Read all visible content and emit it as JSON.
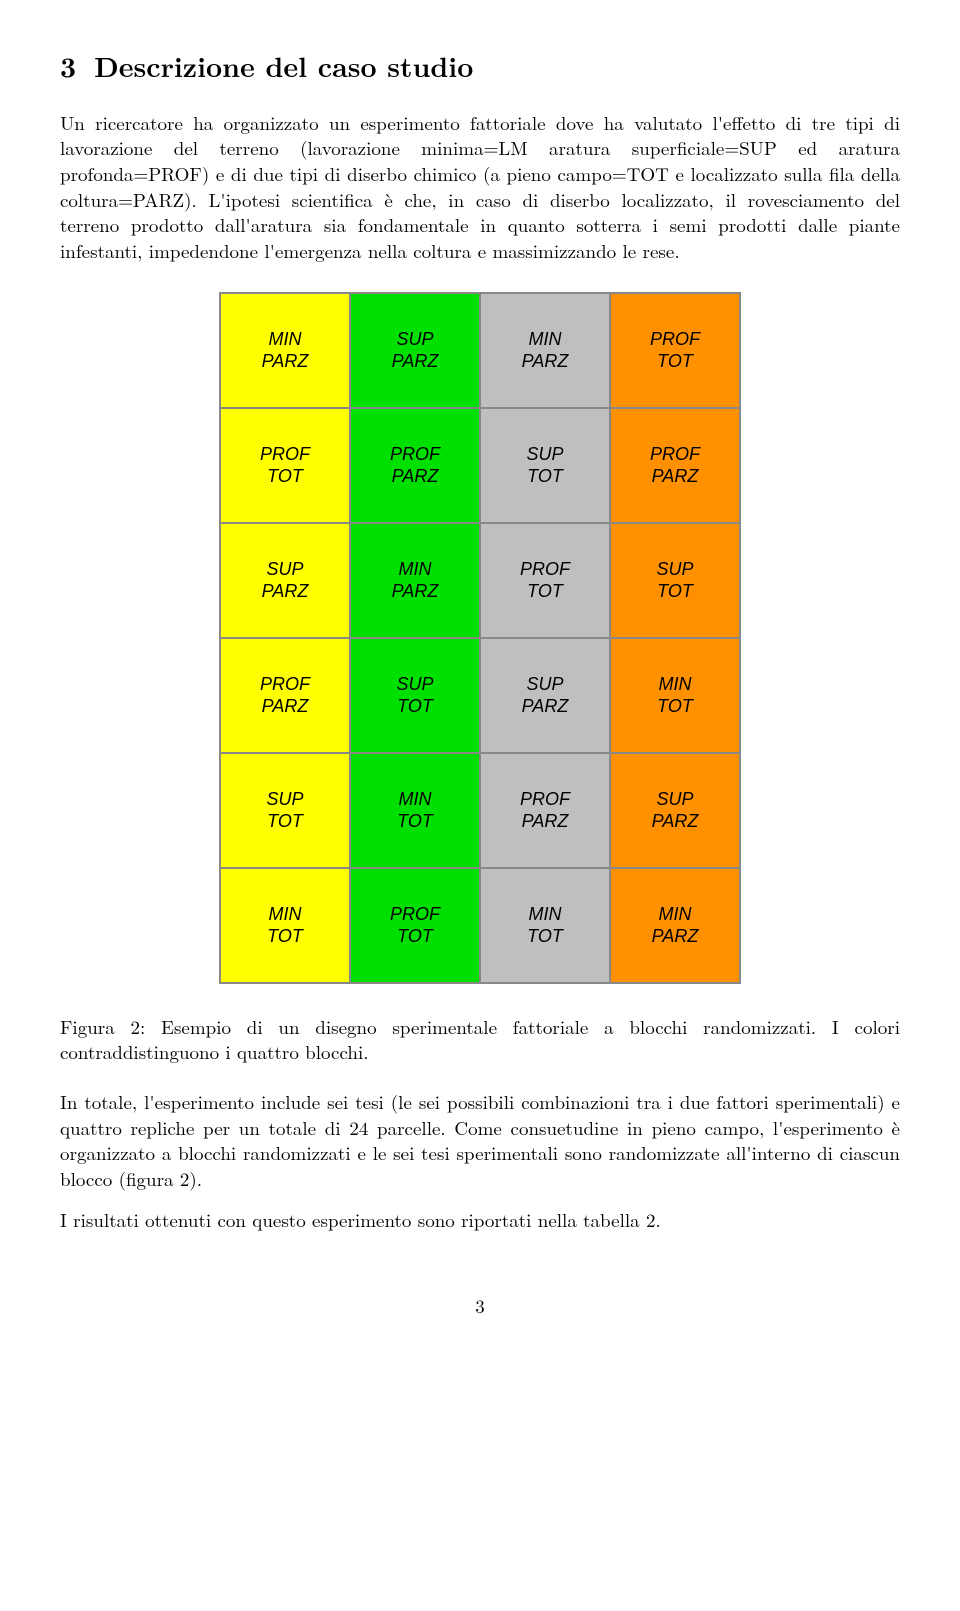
{
  "section": {
    "number": "3",
    "title": "Descrizione del caso studio"
  },
  "para1": "Un ricercatore ha organizzato un esperimento fattoriale dove ha valutato l'effetto di tre tipi di lavorazione del terreno (lavorazione minima=LM aratura superficiale=SUP ed aratura profonda=PROF) e di due tipi di diserbo chimico (a pieno campo=TOT e localizzato sulla fila della coltura=PARZ). L'ipotesi scientifica è che, in caso di diserbo localizzato, il rovesciamento del terreno prodotto dall'aratura sia fondamentale in quanto sotterra i semi prodotti dalle piante infestanti, impedendone l'emergenza nella coltura e massimizzando le rese.",
  "figure": {
    "colors": {
      "yellow": "#ffff00",
      "green": "#00e000",
      "grey": "#bfbfbf",
      "orange": "#ff9000"
    },
    "grid": [
      [
        {
          "l1": "MIN",
          "l2": "PARZ",
          "c": "yellow"
        },
        {
          "l1": "SUP",
          "l2": "PARZ",
          "c": "green"
        },
        {
          "l1": "MIN",
          "l2": "PARZ",
          "c": "grey"
        },
        {
          "l1": "PROF",
          "l2": "TOT",
          "c": "orange"
        }
      ],
      [
        {
          "l1": "PROF",
          "l2": "TOT",
          "c": "yellow"
        },
        {
          "l1": "PROF",
          "l2": "PARZ",
          "c": "green"
        },
        {
          "l1": "SUP",
          "l2": "TOT",
          "c": "grey"
        },
        {
          "l1": "PROF",
          "l2": "PARZ",
          "c": "orange"
        }
      ],
      [
        {
          "l1": "SUP",
          "l2": "PARZ",
          "c": "yellow"
        },
        {
          "l1": "MIN",
          "l2": "PARZ",
          "c": "green"
        },
        {
          "l1": "PROF",
          "l2": "TOT",
          "c": "grey"
        },
        {
          "l1": "SUP",
          "l2": "TOT",
          "c": "orange"
        }
      ],
      [
        {
          "l1": "PROF",
          "l2": "PARZ",
          "c": "yellow"
        },
        {
          "l1": "SUP",
          "l2": "TOT",
          "c": "green"
        },
        {
          "l1": "SUP",
          "l2": "PARZ",
          "c": "grey"
        },
        {
          "l1": "MIN",
          "l2": "TOT",
          "c": "orange"
        }
      ],
      [
        {
          "l1": "SUP",
          "l2": "TOT",
          "c": "yellow"
        },
        {
          "l1": "MIN",
          "l2": "TOT",
          "c": "green"
        },
        {
          "l1": "PROF",
          "l2": "PARZ",
          "c": "grey"
        },
        {
          "l1": "SUP",
          "l2": "PARZ",
          "c": "orange"
        }
      ],
      [
        {
          "l1": "MIN",
          "l2": "TOT",
          "c": "yellow"
        },
        {
          "l1": "PROF",
          "l2": "TOT",
          "c": "green"
        },
        {
          "l1": "MIN",
          "l2": "TOT",
          "c": "grey"
        },
        {
          "l1": "MIN",
          "l2": "PARZ",
          "c": "orange"
        }
      ]
    ],
    "caption": "Figura 2: Esempio di un disegno sperimentale fattoriale a blocchi randomizzati. I colori contraddistinguono i quattro blocchi."
  },
  "para2": "In totale, l'esperimento include sei tesi (le sei possibili combinazioni tra i due fattori sperimentali) e quattro repliche per un totale di 24 parcelle. Come consuetudine in pieno campo, l'esperimento è organizzato a blocchi randomizzati e le sei tesi sperimentali sono randomizzate all'interno di ciascun blocco (figura 2).",
  "para3": "I risultati ottenuti con questo esperimento sono riportati nella tabella 2.",
  "pagenum": "3"
}
